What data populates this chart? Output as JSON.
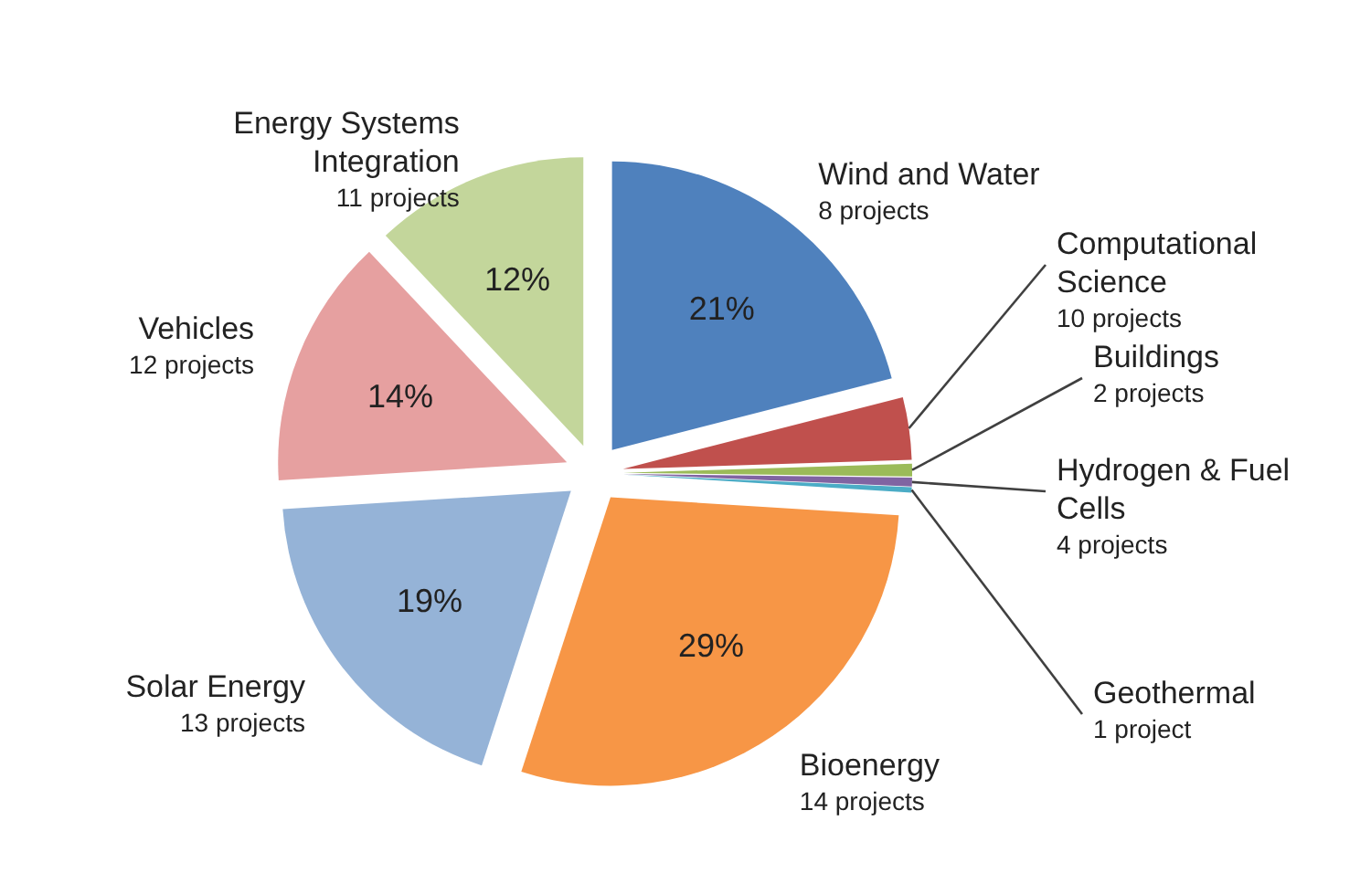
{
  "chart_data": {
    "type": "pie",
    "categories": [
      "Wind and Water",
      "Computational Science",
      "Buildings",
      "Hydrogen & Fuel Cells",
      "Geothermal",
      "Bioenergy",
      "Solar Energy",
      "Vehicles",
      "Energy Systems Integration"
    ],
    "values": [
      21,
      3.5,
      0.7,
      0.5,
      0.3,
      29,
      19,
      14,
      12
    ],
    "value_labels": [
      "21%",
      null,
      null,
      null,
      null,
      "29%",
      "19%",
      "14%",
      "12%"
    ],
    "colors": [
      "#4f81bd",
      "#c0504d",
      "#9bbb59",
      "#8064a2",
      "#4bacc6",
      "#f79646",
      "#95b3d7",
      "#e6a0a0",
      "#c3d69b"
    ],
    "annotations": [
      "8 projects",
      "10 projects",
      "2 projects",
      "4 projects",
      "1 project",
      "14 projects",
      "13 projects",
      "12 projects",
      "11 projects"
    ],
    "legend": false
  }
}
